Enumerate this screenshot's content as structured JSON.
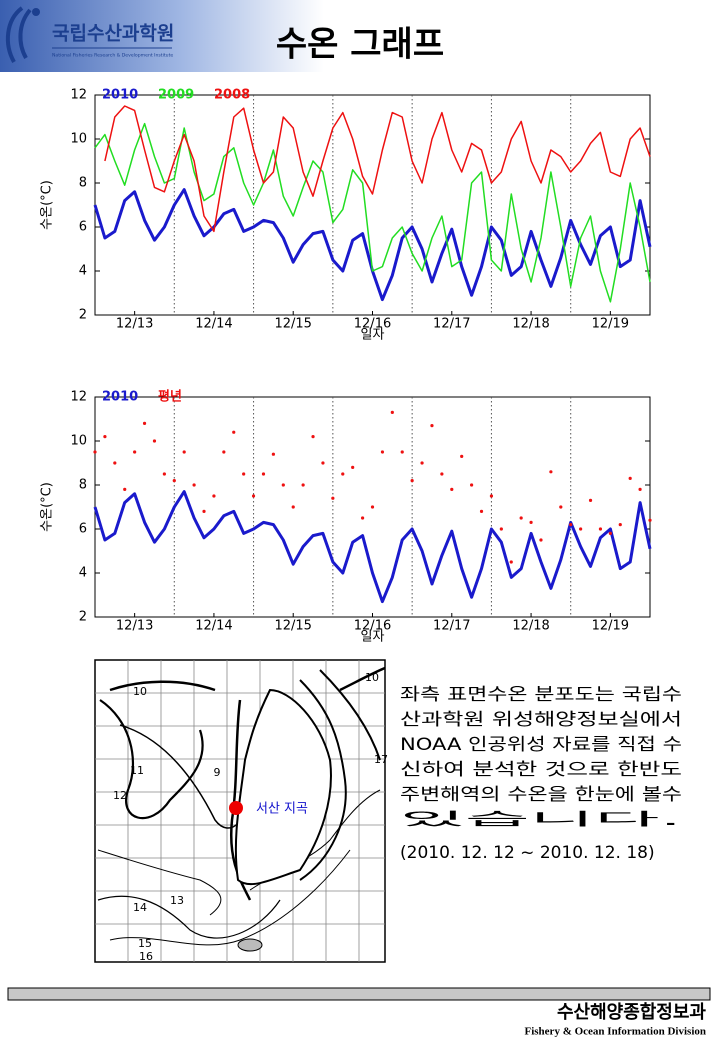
{
  "header": {
    "logo": "국립수산과학원",
    "logo_sub": "National Fisheries Research & Development Institute",
    "title": "수온 그래프"
  },
  "chart_data": [
    {
      "type": "line",
      "xlabel": "일자",
      "ylabel": "수온(°C)",
      "xlim": [
        0,
        7
      ],
      "ylim": [
        2,
        12
      ],
      "yticks": [
        2,
        4,
        6,
        8,
        10,
        12
      ],
      "xticks": [
        {
          "value": 0.5,
          "label": "12/13"
        },
        {
          "value": 1.5,
          "label": "12/14"
        },
        {
          "value": 2.5,
          "label": "12/15"
        },
        {
          "value": 3.5,
          "label": "12/16"
        },
        {
          "value": 4.5,
          "label": "12/17"
        },
        {
          "value": 5.5,
          "label": "12/18"
        },
        {
          "value": 6.5,
          "label": "12/19"
        }
      ],
      "xgrid": [
        1,
        2,
        3,
        4,
        5,
        6
      ],
      "x": [
        0,
        0.125,
        0.25,
        0.375,
        0.5,
        0.625,
        0.75,
        0.875,
        1,
        1.125,
        1.25,
        1.375,
        1.5,
        1.625,
        1.75,
        1.875,
        2,
        2.125,
        2.25,
        2.375,
        2.5,
        2.625,
        2.75,
        2.875,
        3,
        3.125,
        3.25,
        3.375,
        3.5,
        3.625,
        3.75,
        3.875,
        4,
        4.125,
        4.25,
        4.375,
        4.5,
        4.625,
        4.75,
        4.875,
        5,
        5.125,
        5.25,
        5.375,
        5.5,
        5.625,
        5.75,
        5.875,
        6,
        6.125,
        6.25,
        6.375,
        6.5,
        6.625,
        6.75,
        6.875,
        7
      ],
      "series": [
        {
          "name": "2010",
          "color": "#1a1acc",
          "width": 3,
          "style": "line",
          "values": [
            7.0,
            5.5,
            5.8,
            7.2,
            7.6,
            6.3,
            5.4,
            6.0,
            7.0,
            7.7,
            6.5,
            5.6,
            6.0,
            6.6,
            6.8,
            5.8,
            6.0,
            6.3,
            6.2,
            5.5,
            4.4,
            5.2,
            5.7,
            5.8,
            4.5,
            4.0,
            5.4,
            5.7,
            4.0,
            2.7,
            3.8,
            5.5,
            6.0,
            5.0,
            3.5,
            4.8,
            5.9,
            4.2,
            2.9,
            4.2,
            6.0,
            5.4,
            3.8,
            4.2,
            5.8,
            4.5,
            3.3,
            4.6,
            6.3,
            5.2,
            4.3,
            5.6,
            6.0,
            4.2,
            4.5,
            7.2,
            5.1
          ]
        },
        {
          "name": "2009",
          "color": "#22dd22",
          "width": 1.5,
          "style": "line",
          "values": [
            9.6,
            10.2,
            9.0,
            7.9,
            9.5,
            10.7,
            9.2,
            8.0,
            8.2,
            10.5,
            8.5,
            7.2,
            7.5,
            9.2,
            9.6,
            8.0,
            7.0,
            8.0,
            9.5,
            7.4,
            6.5,
            7.8,
            9.0,
            8.5,
            6.2,
            6.8,
            8.6,
            8.0,
            4.0,
            4.2,
            5.5,
            6.0,
            4.8,
            4.0,
            5.5,
            6.5,
            4.2,
            4.5,
            8.0,
            8.5,
            4.5,
            4.0,
            7.5,
            5.0,
            3.5,
            5.5,
            8.5,
            6.0,
            3.3,
            5.5,
            6.5,
            4.0,
            2.6,
            5.0,
            8.0,
            6.0,
            3.5
          ]
        },
        {
          "name": "2008",
          "color": "#ee1111",
          "width": 1.5,
          "style": "line",
          "values": [
            null,
            9.0,
            11.0,
            11.5,
            11.3,
            9.5,
            7.8,
            7.6,
            9.0,
            10.2,
            9.0,
            6.5,
            5.8,
            8.5,
            11.0,
            11.4,
            9.5,
            8.0,
            8.5,
            11.0,
            10.5,
            8.5,
            7.4,
            9.0,
            10.5,
            11.2,
            10.0,
            8.3,
            7.5,
            9.5,
            11.2,
            11.0,
            9.0,
            8.0,
            10.0,
            11.2,
            9.5,
            8.5,
            9.8,
            9.5,
            8.0,
            8.5,
            10.0,
            10.8,
            9.0,
            8.0,
            9.5,
            9.2,
            8.5,
            9.0,
            9.8,
            10.3,
            8.5,
            8.3,
            10.0,
            10.5,
            9.2
          ]
        }
      ]
    },
    {
      "type": "line",
      "xlabel": "일자",
      "ylabel": "수온(°C)",
      "xlim": [
        0,
        7
      ],
      "ylim": [
        2,
        12
      ],
      "yticks": [
        2,
        4,
        6,
        8,
        10,
        12
      ],
      "xticks": [
        {
          "value": 0.5,
          "label": "12/13"
        },
        {
          "value": 1.5,
          "label": "12/14"
        },
        {
          "value": 2.5,
          "label": "12/15"
        },
        {
          "value": 3.5,
          "label": "12/16"
        },
        {
          "value": 4.5,
          "label": "12/17"
        },
        {
          "value": 5.5,
          "label": "12/18"
        },
        {
          "value": 6.5,
          "label": "12/19"
        }
      ],
      "xgrid": [
        1,
        2,
        3,
        4,
        5,
        6
      ],
      "x": [
        0,
        0.125,
        0.25,
        0.375,
        0.5,
        0.625,
        0.75,
        0.875,
        1,
        1.125,
        1.25,
        1.375,
        1.5,
        1.625,
        1.75,
        1.875,
        2,
        2.125,
        2.25,
        2.375,
        2.5,
        2.625,
        2.75,
        2.875,
        3,
        3.125,
        3.25,
        3.375,
        3.5,
        3.625,
        3.75,
        3.875,
        4,
        4.125,
        4.25,
        4.375,
        4.5,
        4.625,
        4.75,
        4.875,
        5,
        5.125,
        5.25,
        5.375,
        5.5,
        5.625,
        5.75,
        5.875,
        6,
        6.125,
        6.25,
        6.375,
        6.5,
        6.625,
        6.75,
        6.875,
        7
      ],
      "series": [
        {
          "name": "2010",
          "color": "#1a1acc",
          "width": 3,
          "style": "line",
          "values": [
            7.0,
            5.5,
            5.8,
            7.2,
            7.6,
            6.3,
            5.4,
            6.0,
            7.0,
            7.7,
            6.5,
            5.6,
            6.0,
            6.6,
            6.8,
            5.8,
            6.0,
            6.3,
            6.2,
            5.5,
            4.4,
            5.2,
            5.7,
            5.8,
            4.5,
            4.0,
            5.4,
            5.7,
            4.0,
            2.7,
            3.8,
            5.5,
            6.0,
            5.0,
            3.5,
            4.8,
            5.9,
            4.2,
            2.9,
            4.2,
            6.0,
            5.4,
            3.8,
            4.2,
            5.8,
            4.5,
            3.3,
            4.6,
            6.3,
            5.2,
            4.3,
            5.6,
            6.0,
            4.2,
            4.5,
            7.2,
            5.1
          ]
        },
        {
          "name": "평년",
          "color": "#ee1111",
          "width": 1.6,
          "style": "dots",
          "values": [
            9.5,
            10.2,
            9.0,
            7.8,
            9.5,
            10.8,
            10.0,
            8.5,
            8.2,
            9.5,
            8.0,
            6.8,
            7.5,
            9.5,
            10.4,
            8.5,
            7.5,
            8.5,
            9.4,
            8.0,
            7.0,
            8.0,
            10.2,
            9.0,
            7.4,
            8.5,
            8.8,
            6.5,
            7.0,
            9.5,
            11.3,
            9.5,
            8.2,
            9.0,
            10.7,
            8.5,
            7.8,
            9.3,
            8.0,
            6.8,
            7.5,
            6.0,
            4.5,
            6.5,
            6.3,
            5.5,
            8.6,
            7.0,
            6.2,
            6.0,
            7.3,
            6.0,
            5.8,
            6.2,
            8.3,
            7.8,
            6.4
          ]
        }
      ]
    }
  ],
  "map": {
    "labels": [
      "10",
      "11",
      "12",
      "9",
      "13",
      "14",
      "15",
      "16",
      "17",
      "10"
    ],
    "site": "서산 지곡"
  },
  "text": {
    "lines": [
      "좌측 표면수온 분포도는 국립수",
      "산과학원 위성해양정보실에서",
      "NOAA 인공위성 자료를 직접 수",
      "신하여 분석한 것으로  한반도",
      "주변해역의 수온을 한눈에 볼수",
      "있습니다."
    ],
    "period": "(2010. 12. 12 ~ 2010. 12. 18)"
  },
  "footer": {
    "division_ko": "수산해양종합정보과",
    "division_en": "Fishery & Ocean Information Division"
  }
}
